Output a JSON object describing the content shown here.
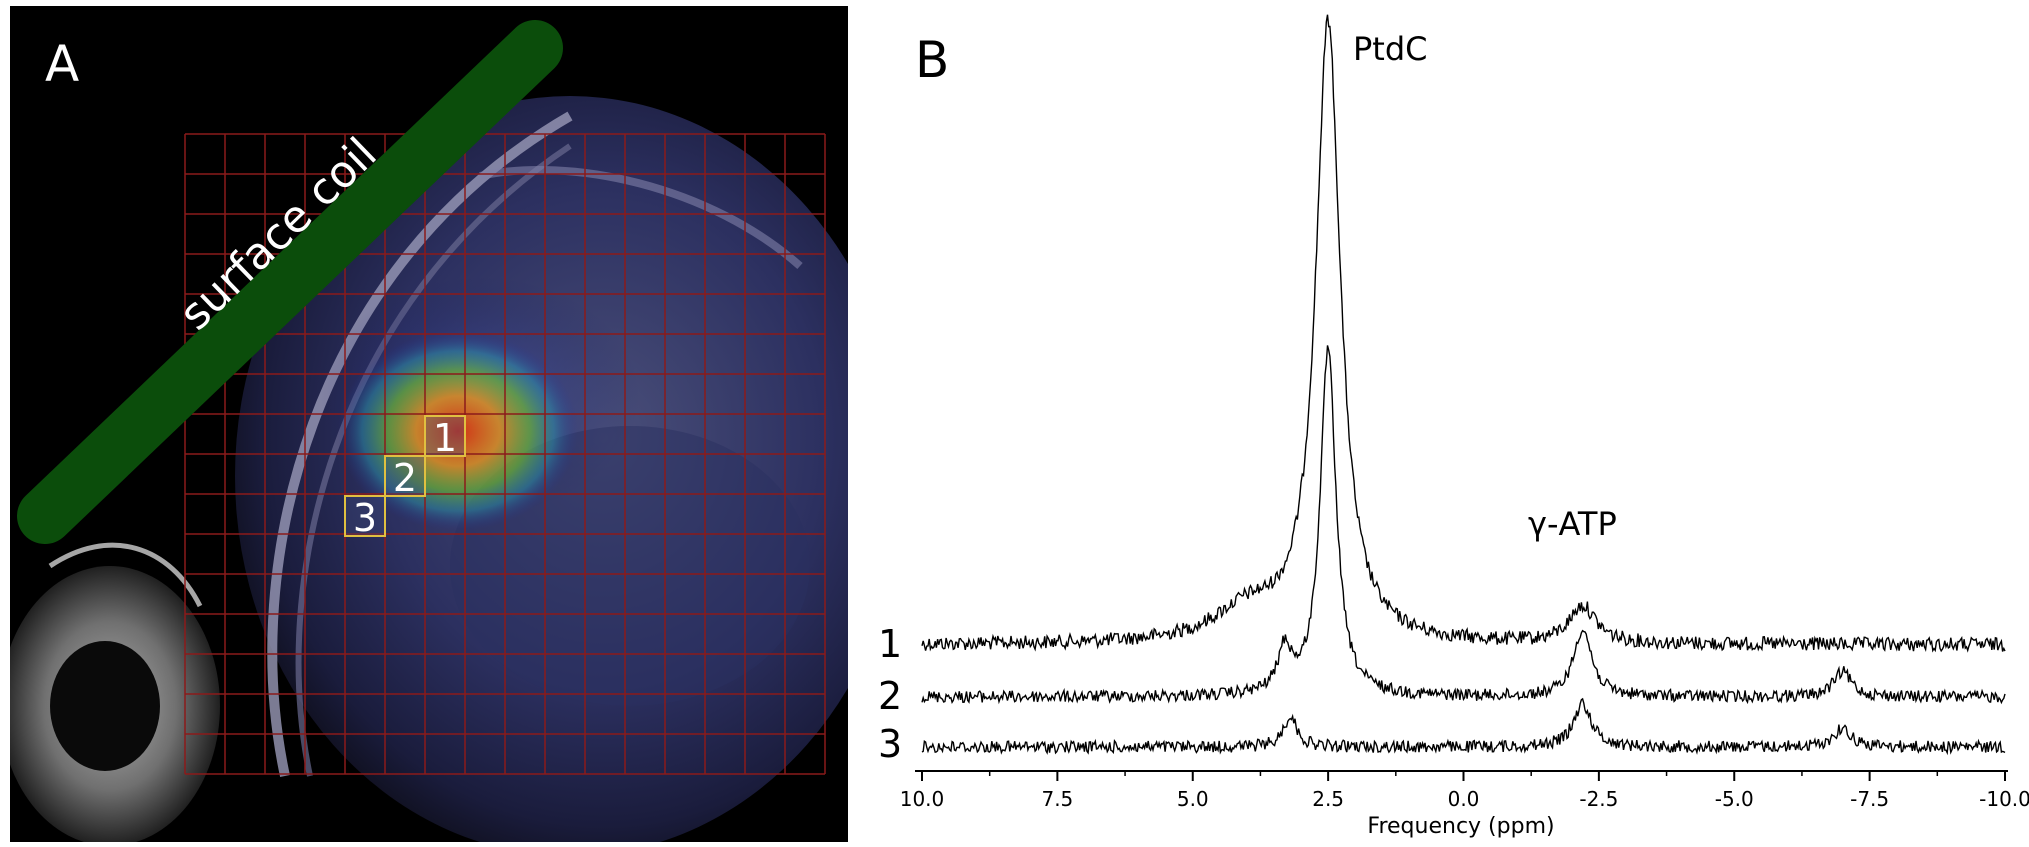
{
  "panel_a": {
    "letter": "A",
    "coil_label": "surface coil",
    "voxels": [
      {
        "label": "1"
      },
      {
        "label": "2"
      },
      {
        "label": "3"
      }
    ],
    "colors": {
      "grid": "#8b1a1a",
      "coil": "#0b4d0b",
      "voxel_box": "#e0c040"
    }
  },
  "panel_b": {
    "letter": "B",
    "peak_labels": {
      "ptdc": "PtdC",
      "atp": "γ-ATP"
    },
    "trace_labels": [
      "1",
      "2",
      "3"
    ],
    "chart_data": {
      "type": "line",
      "xlabel": "Frequency (ppm)",
      "ylabel": "",
      "xlim": [
        10.0,
        -10.0
      ],
      "x_reversed": true,
      "x_ticks": [
        "10.0",
        "7.5",
        "5.0",
        "2.5",
        "0.0",
        "-2.5",
        "-5.0",
        "-7.5",
        "-10.0"
      ],
      "x_tick_values": [
        10.0,
        7.5,
        5.0,
        2.5,
        0.0,
        -2.5,
        -5.0,
        -7.5,
        -10.0
      ],
      "grid": false,
      "legend": "none",
      "y_axis_shown": false,
      "series": [
        {
          "name": "1",
          "peaks": [
            {
              "center": 2.5,
              "height": 1.0,
              "width": 0.55
            },
            {
              "center": -2.2,
              "height": 0.06,
              "width": 0.6
            },
            {
              "center": 4.0,
              "height": 0.05,
              "width": 1.5
            }
          ]
        },
        {
          "name": "2",
          "peaks": [
            {
              "center": 2.5,
              "height": 0.56,
              "width": 0.35
            },
            {
              "center": -2.2,
              "height": 0.11,
              "width": 0.4
            },
            {
              "center": 3.3,
              "height": 0.07,
              "width": 0.3
            },
            {
              "center": -7.0,
              "height": 0.04,
              "width": 0.4
            }
          ]
        },
        {
          "name": "3",
          "peaks": [
            {
              "center": -2.2,
              "height": 0.07,
              "width": 0.4
            },
            {
              "center": 3.2,
              "height": 0.05,
              "width": 0.3
            },
            {
              "center": -7.0,
              "height": 0.03,
              "width": 0.4
            }
          ]
        }
      ]
    }
  }
}
